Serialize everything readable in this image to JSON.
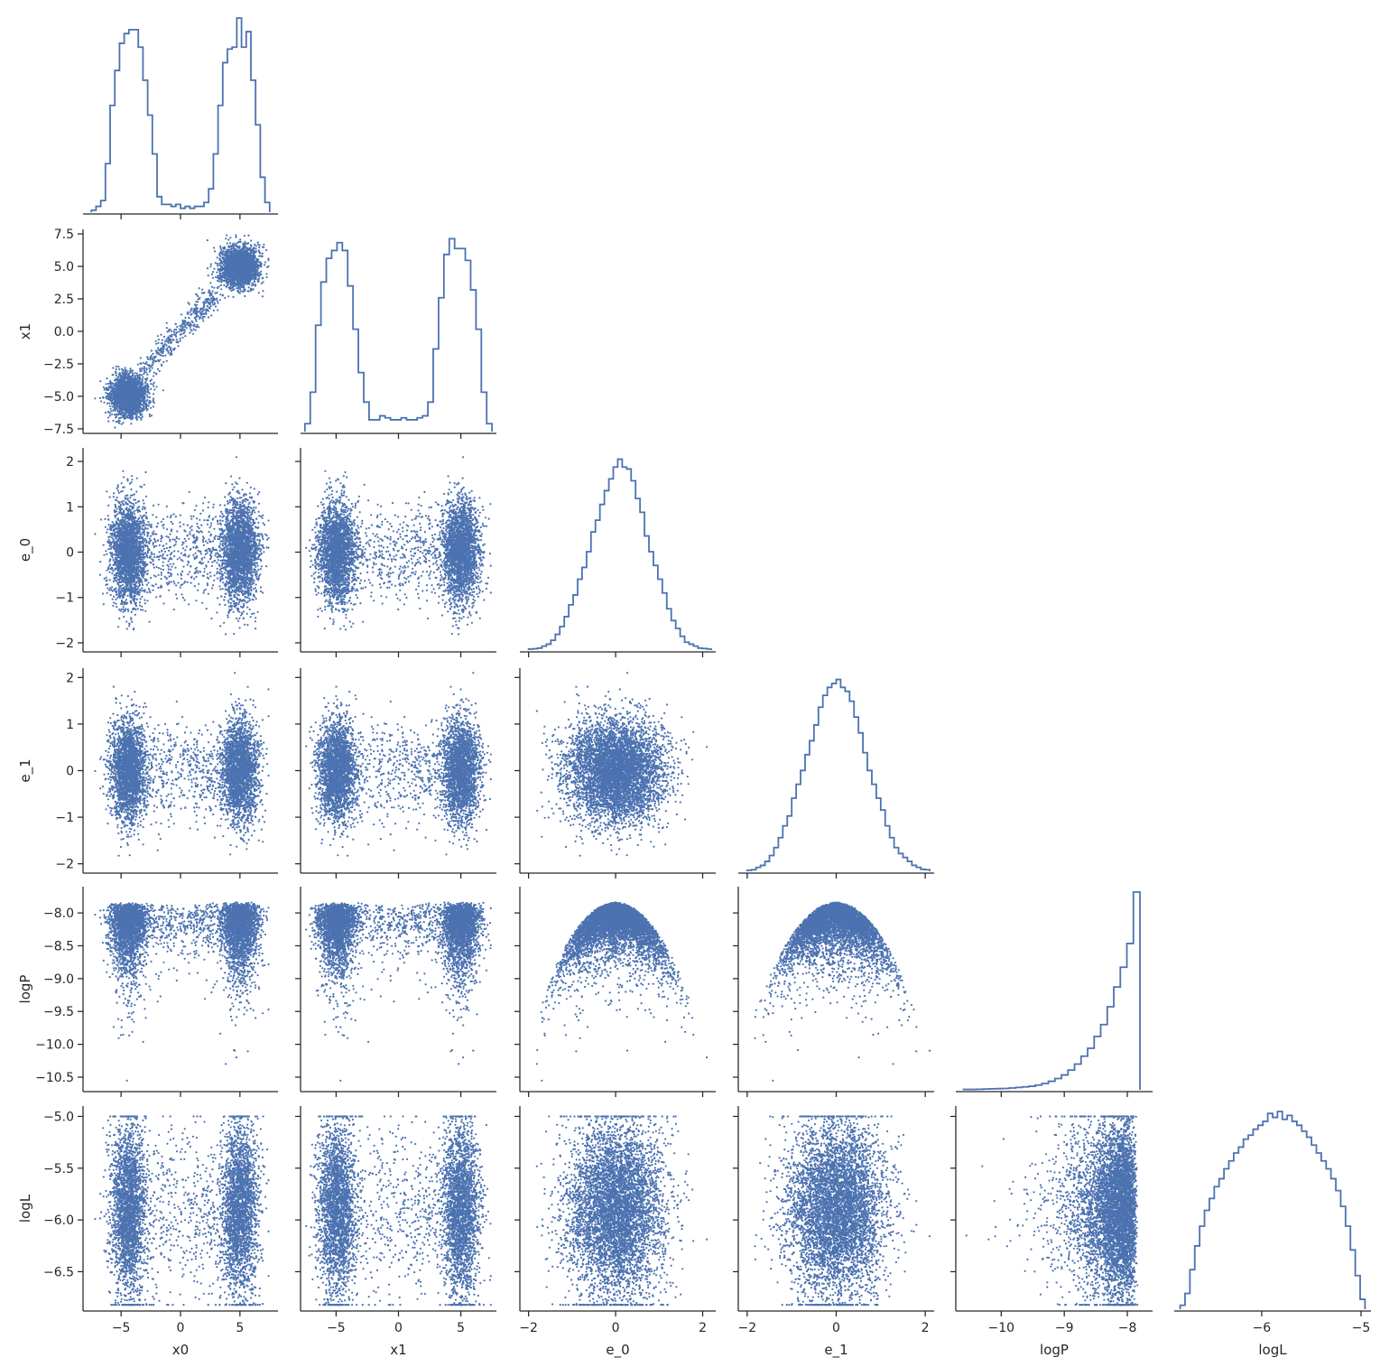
{
  "chart_data": {
    "type": "pairplot",
    "variables": [
      "x0",
      "x1",
      "e_0",
      "e_1",
      "logP",
      "logL"
    ],
    "series_color": "#4c72b0",
    "ranges": {
      "x0": [
        -8.2,
        8.2
      ],
      "x1": [
        -7.85,
        7.85
      ],
      "e_0": [
        -2.2,
        2.3
      ],
      "e_1": [
        -2.2,
        2.2
      ],
      "logP": [
        -10.72,
        -7.6
      ],
      "logL": [
        -6.88,
        -4.9
      ]
    },
    "ticks": {
      "x0": [
        -5,
        0,
        5
      ],
      "x1": [
        -7.5,
        -5.0,
        -2.5,
        0.0,
        2.5,
        5.0,
        7.5
      ],
      "e_0": [
        -2,
        -1,
        0,
        1,
        2
      ],
      "e_1": [
        -2,
        -1,
        0,
        1,
        2
      ],
      "logP": [
        -10.5,
        -10.0,
        -9.5,
        -9.0,
        -8.5,
        -8.0
      ],
      "logL": [
        -6.5,
        -6.0,
        -5.5,
        -5.0
      ]
    },
    "tick_labels_y": {
      "x1": [
        "−7.5",
        "−5.0",
        "−2.5",
        "0.0",
        "2.5",
        "5.0",
        "7.5"
      ],
      "e_0": [
        "−2",
        "−1",
        "0",
        "1",
        "2"
      ],
      "e_1": [
        "−2",
        "−1",
        "0",
        "1",
        "2"
      ],
      "logP": [
        "−10.5",
        "−10.0",
        "−9.5",
        "−9.0",
        "−8.5",
        "−8.0"
      ],
      "logL": [
        "−6.5",
        "−6.0",
        "−5.5",
        "−5.0"
      ]
    },
    "tick_labels_x": {
      "x0": [
        "−5",
        "0",
        "5"
      ],
      "x1": [
        "−5",
        "0",
        "5"
      ],
      "e_0": [
        "−2",
        "0",
        "2"
      ],
      "e_1": [
        "−2",
        "0",
        "2"
      ],
      "logP": [
        "−10",
        "−9",
        "−8"
      ],
      "logL": [
        "−6",
        "−5"
      ]
    },
    "ticks_x": {
      "x0": [
        -5,
        0,
        5
      ],
      "x1": [
        -5,
        0,
        5
      ],
      "e_0": [
        -2,
        0,
        2
      ],
      "e_1": [
        -2,
        0,
        2
      ],
      "logP": [
        -10,
        -9,
        -8
      ],
      "logL": [
        -6,
        -5
      ]
    },
    "histograms": {
      "x0": {
        "bins": [
          -7.5,
          7.5
        ],
        "heights": [
          0.01,
          0.03,
          0.06,
          0.25,
          0.55,
          0.73,
          0.87,
          0.92,
          0.94,
          0.94,
          0.85,
          0.68,
          0.5,
          0.3,
          0.08,
          0.04,
          0.04,
          0.03,
          0.04,
          0.02,
          0.03,
          0.02,
          0.03,
          0.03,
          0.05,
          0.12,
          0.3,
          0.55,
          0.77,
          0.84,
          0.85,
          1.0,
          0.85,
          0.93,
          0.68,
          0.45,
          0.18,
          0.05
        ]
      },
      "x1": {
        "bins": [
          -7.5,
          7.5
        ],
        "heights": [
          0.04,
          0.2,
          0.54,
          0.76,
          0.88,
          0.92,
          0.96,
          0.92,
          0.74,
          0.52,
          0.3,
          0.15,
          0.06,
          0.06,
          0.08,
          0.07,
          0.06,
          0.06,
          0.07,
          0.06,
          0.06,
          0.07,
          0.08,
          0.15,
          0.42,
          0.68,
          0.9,
          0.98,
          0.93,
          0.93,
          0.87,
          0.72,
          0.52,
          0.2,
          0.04
        ]
      },
      "e_0": {
        "bins": [
          -2.0,
          2.2
        ],
        "heights": [
          0.005,
          0.007,
          0.01,
          0.02,
          0.03,
          0.05,
          0.08,
          0.12,
          0.17,
          0.23,
          0.28,
          0.36,
          0.42,
          0.5,
          0.6,
          0.66,
          0.74,
          0.81,
          0.87,
          0.93,
          0.97,
          0.93,
          0.92,
          0.86,
          0.77,
          0.7,
          0.58,
          0.5,
          0.43,
          0.36,
          0.29,
          0.21,
          0.15,
          0.11,
          0.07,
          0.04,
          0.03,
          0.02,
          0.01,
          0.008,
          0.005
        ]
      },
      "e_1": {
        "bins": [
          -2.0,
          2.1
        ],
        "heights": [
          0.005,
          0.008,
          0.02,
          0.03,
          0.05,
          0.08,
          0.12,
          0.17,
          0.23,
          0.28,
          0.37,
          0.44,
          0.51,
          0.59,
          0.66,
          0.74,
          0.83,
          0.89,
          0.93,
          0.95,
          0.97,
          0.93,
          0.91,
          0.86,
          0.78,
          0.7,
          0.6,
          0.51,
          0.44,
          0.37,
          0.31,
          0.23,
          0.17,
          0.12,
          0.09,
          0.07,
          0.05,
          0.03,
          0.02,
          0.01,
          0.008
        ]
      },
      "logP": {
        "bins": [
          -10.6,
          -7.8
        ],
        "heights": [
          0.002,
          0.002,
          0.003,
          0.004,
          0.005,
          0.006,
          0.007,
          0.009,
          0.012,
          0.015,
          0.018,
          0.024,
          0.032,
          0.043,
          0.057,
          0.075,
          0.1,
          0.13,
          0.17,
          0.21,
          0.27,
          0.33,
          0.42,
          0.52,
          0.62,
          0.74,
          1.0
        ]
      },
      "logL": {
        "bins": [
          -6.82,
          -4.96
        ],
        "heights": [
          0.02,
          0.08,
          0.2,
          0.32,
          0.42,
          0.5,
          0.56,
          0.62,
          0.66,
          0.71,
          0.75,
          0.79,
          0.82,
          0.86,
          0.88,
          0.91,
          0.93,
          0.95,
          0.99,
          0.97,
          1.0,
          0.96,
          0.98,
          0.95,
          0.93,
          0.9,
          0.87,
          0.83,
          0.79,
          0.75,
          0.71,
          0.66,
          0.6,
          0.52,
          0.42,
          0.3,
          0.17,
          0.05
        ]
      }
    },
    "point_count": 5200
  }
}
